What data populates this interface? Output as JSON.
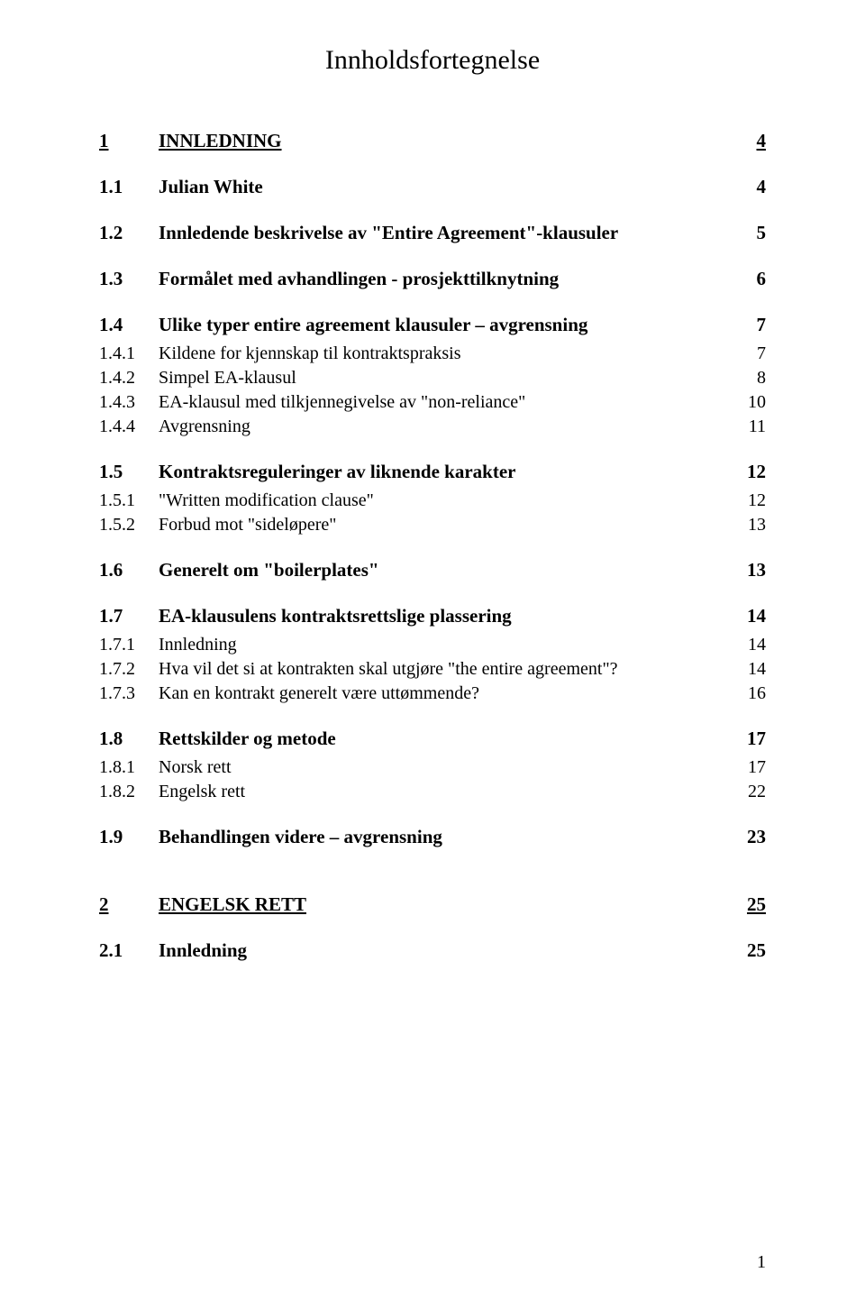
{
  "title": "Innholdsfortegnelse",
  "pageNumber": "1",
  "colors": {
    "background": "#ffffff",
    "text": "#000000"
  },
  "typography": {
    "family": "Times New Roman",
    "title_size_pt": 22,
    "l1_size_pt": 16,
    "l2_size_pt": 16,
    "l3_size_pt": 15
  },
  "toc": [
    {
      "level": 1,
      "num": "1",
      "label": "INNLEDNING",
      "page": "4"
    },
    {
      "level": 2,
      "num": "1.1",
      "label": "Julian White",
      "page": "4"
    },
    {
      "level": 2,
      "num": "1.2",
      "label": "Innledende beskrivelse av \"Entire Agreement\"-klausuler",
      "page": "5"
    },
    {
      "level": 2,
      "num": "1.3",
      "label": "Formålet med avhandlingen - prosjekttilknytning",
      "page": "6"
    },
    {
      "level": 2,
      "num": "1.4",
      "label": "Ulike typer entire agreement klausuler – avgrensning",
      "page": "7"
    },
    {
      "level": 3,
      "num": "1.4.1",
      "label": "Kildene for kjennskap til kontraktspraksis",
      "page": "7"
    },
    {
      "level": 3,
      "num": "1.4.2",
      "label": "Simpel EA-klausul",
      "page": "8"
    },
    {
      "level": 3,
      "num": "1.4.3",
      "label": "EA-klausul med tilkjennegivelse av \"non-reliance\"",
      "page": "10"
    },
    {
      "level": 3,
      "num": "1.4.4",
      "label": "Avgrensning",
      "page": "11"
    },
    {
      "level": 2,
      "num": "1.5",
      "label": "Kontraktsreguleringer av liknende karakter",
      "page": "12"
    },
    {
      "level": 3,
      "num": "1.5.1",
      "label": "\"Written modification clause\"",
      "page": "12"
    },
    {
      "level": 3,
      "num": "1.5.2",
      "label": "Forbud mot \"sideløpere\"",
      "page": "13"
    },
    {
      "level": 2,
      "num": "1.6",
      "label": "Generelt om \"boilerplates\"",
      "page": "13"
    },
    {
      "level": 2,
      "num": "1.7",
      "label": "EA-klausulens kontraktsrettslige plassering",
      "page": "14"
    },
    {
      "level": 3,
      "num": "1.7.1",
      "label": "Innledning",
      "page": "14"
    },
    {
      "level": 3,
      "num": "1.7.2",
      "label": "Hva vil det si at kontrakten skal utgjøre \"the entire agreement\"?",
      "page": "14"
    },
    {
      "level": 3,
      "num": "1.7.3",
      "label": "Kan en kontrakt generelt være uttømmende?",
      "page": "16"
    },
    {
      "level": 2,
      "num": "1.8",
      "label": "Rettskilder og metode",
      "page": "17"
    },
    {
      "level": 3,
      "num": "1.8.1",
      "label": "Norsk rett",
      "page": "17"
    },
    {
      "level": 3,
      "num": "1.8.2",
      "label": "Engelsk rett",
      "page": "22"
    },
    {
      "level": 2,
      "num": "1.9",
      "label": "Behandlingen videre – avgrensning",
      "page": "23"
    },
    {
      "level": 1,
      "num": "2",
      "label": "ENGELSK RETT",
      "page": "25",
      "extraGap": true
    },
    {
      "level": 2,
      "num": "2.1",
      "label": "Innledning",
      "page": "25"
    }
  ]
}
